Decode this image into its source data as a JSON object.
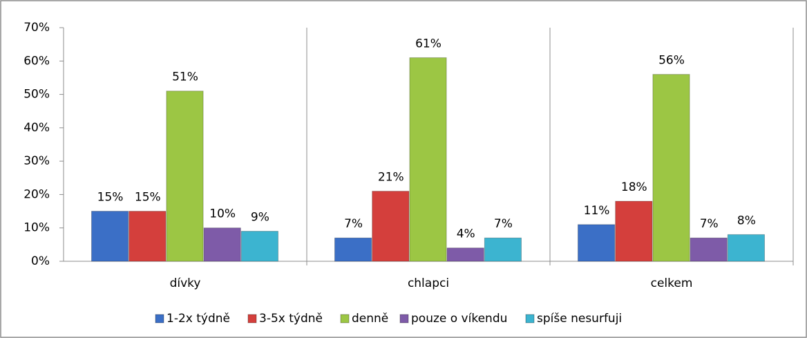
{
  "chart_data": {
    "type": "bar",
    "categories": [
      "dívky",
      "chlapci",
      "celkem"
    ],
    "series": [
      {
        "name": "1-2x týdně",
        "color": "#3b6fc6",
        "values": [
          15,
          7,
          11
        ],
        "value_labels": [
          "15%",
          "7%",
          "11%"
        ]
      },
      {
        "name": "3-5x týdně",
        "color": "#d43f3c",
        "values": [
          15,
          21,
          18
        ],
        "value_labels": [
          "15%",
          "21%",
          "18%"
        ]
      },
      {
        "name": "denně",
        "color": "#9cc644",
        "values": [
          51,
          61,
          56
        ],
        "value_labels": [
          "51%",
          "61%",
          "56%"
        ]
      },
      {
        "name": "pouze o víkendu",
        "color": "#7e5ba8",
        "values": [
          10,
          4,
          7
        ],
        "value_labels": [
          "10%",
          "4%",
          "7%"
        ]
      },
      {
        "name": "spíše nesurfuji",
        "color": "#3cb4d0",
        "values": [
          9,
          7,
          8
        ],
        "value_labels": [
          "9%",
          "7%",
          "8%"
        ]
      }
    ],
    "ylim": [
      0,
      70
    ],
    "yticks": [
      {
        "value": 0,
        "label": "0%"
      },
      {
        "value": 10,
        "label": "10%"
      },
      {
        "value": 20,
        "label": "20%"
      },
      {
        "value": 30,
        "label": "30%"
      },
      {
        "value": 40,
        "label": "40%"
      },
      {
        "value": 50,
        "label": "50%"
      },
      {
        "value": 60,
        "label": "60%"
      },
      {
        "value": 70,
        "label": "70%"
      }
    ],
    "grid": false,
    "legend": "bottom"
  }
}
